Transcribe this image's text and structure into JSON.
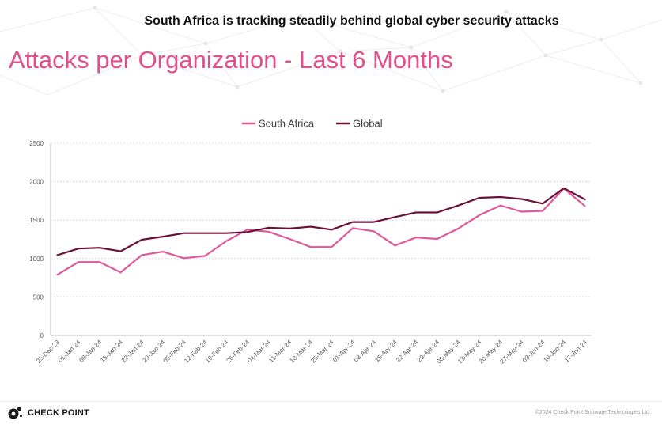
{
  "headline": "South Africa is tracking steadily behind global cyber security attacks",
  "footer": {
    "brand": "CHECK POINT",
    "copyright": "©2024 Check Point Software Technologies Ltd."
  },
  "colors": {
    "south_africa": "#e0589a",
    "global": "#6b1239",
    "title": "#e14f8c",
    "grid": "#d9d9d9"
  },
  "chart_data": {
    "type": "line",
    "title": "Attacks per Organization - Last 6 Months",
    "xlabel": "",
    "ylabel": "",
    "ylim": [
      0,
      2500
    ],
    "yticks": [
      0,
      500,
      1000,
      1500,
      2000,
      2500
    ],
    "grid": true,
    "legend_position": "top-center",
    "categories": [
      "25-Dec-23",
      "01-Jan-24",
      "08-Jan-24",
      "15-Jan-24",
      "22-Jan-24",
      "29-Jan-24",
      "05-Feb-24",
      "12-Feb-24",
      "19-Feb-24",
      "26-Feb-24",
      "04-Mar-24",
      "11-Mar-24",
      "18-Mar-24",
      "25-Mar-24",
      "01-Apr-24",
      "08-Apr-24",
      "15-Apr-24",
      "22-Apr-24",
      "29-Apr-24",
      "06-May-24",
      "13-May-24",
      "20-May-24",
      "27-May-24",
      "03-Jun-24",
      "10-Jun-24",
      "17-Jun-24"
    ],
    "series": [
      {
        "name": "South Africa",
        "color": "#e0589a",
        "values": [
          790,
          955,
          955,
          820,
          1045,
          1090,
          1005,
          1035,
          1225,
          1375,
          1350,
          1255,
          1150,
          1150,
          1395,
          1355,
          1170,
          1275,
          1255,
          1390,
          1565,
          1690,
          1610,
          1620,
          1910,
          1685
        ]
      },
      {
        "name": "Global",
        "color": "#6b1239",
        "values": [
          1045,
          1130,
          1140,
          1095,
          1245,
          1285,
          1330,
          1330,
          1330,
          1345,
          1400,
          1390,
          1415,
          1375,
          1475,
          1475,
          1540,
          1600,
          1600,
          1690,
          1790,
          1800,
          1775,
          1715,
          1915,
          1770
        ]
      }
    ]
  }
}
